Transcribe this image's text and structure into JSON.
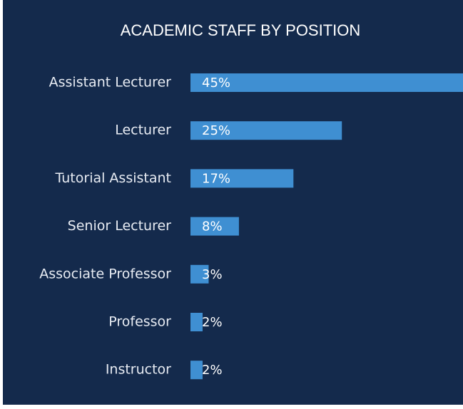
{
  "chart_data": {
    "type": "barh",
    "title": "ACADEMIC STAFF BY POSITION",
    "categories": [
      "Assistant Lecturer",
      "Lecturer",
      "Tutorial Assistant",
      "Senior Lecturer",
      "Associate Professor",
      "Professor",
      "Instructor"
    ],
    "values": [
      45,
      25,
      17,
      8,
      3,
      2,
      2
    ],
    "value_labels": [
      "45%",
      "25%",
      "17%",
      "8%",
      "3%",
      "2%",
      "2%"
    ],
    "color": "#3f8fd2"
  }
}
